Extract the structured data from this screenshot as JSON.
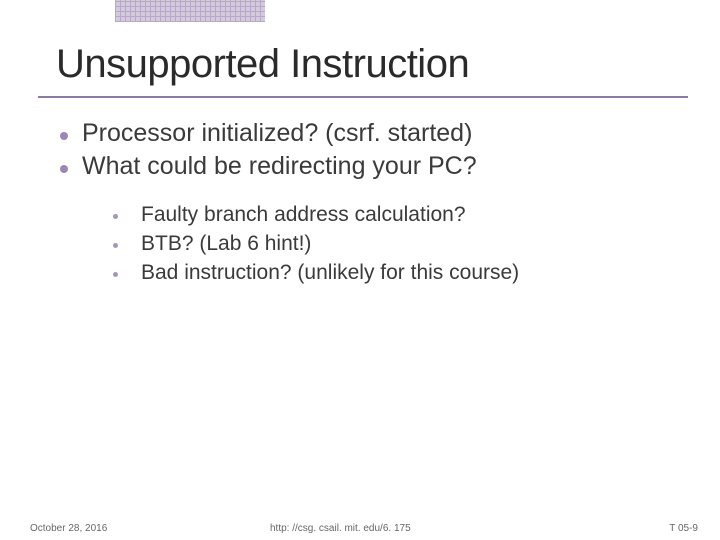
{
  "title": "Unsupported Instruction",
  "bullets_level1": [
    "Processor initialized? (csrf. started)",
    "What could be redirecting your PC?"
  ],
  "bullets_level2": [
    "Faulty branch address calculation?",
    "BTB? (Lab 6 hint!)",
    "Bad instruction? (unlikely for this course)"
  ],
  "footer": {
    "date": "October 28, 2016",
    "url": "http: //csg. csail. mit. edu/6. 175",
    "slide": "T 05-9"
  },
  "colors": {
    "title_underline": "#8a7aa0",
    "bullet1": "#9a88b0",
    "bullet2": "#a596b8",
    "accent_grid": "#b8a8c8",
    "text": "#3a3a3a"
  },
  "fonts": {
    "title_size": 40,
    "level1_size": 25,
    "level2_size": 21,
    "footer_size": 10
  }
}
